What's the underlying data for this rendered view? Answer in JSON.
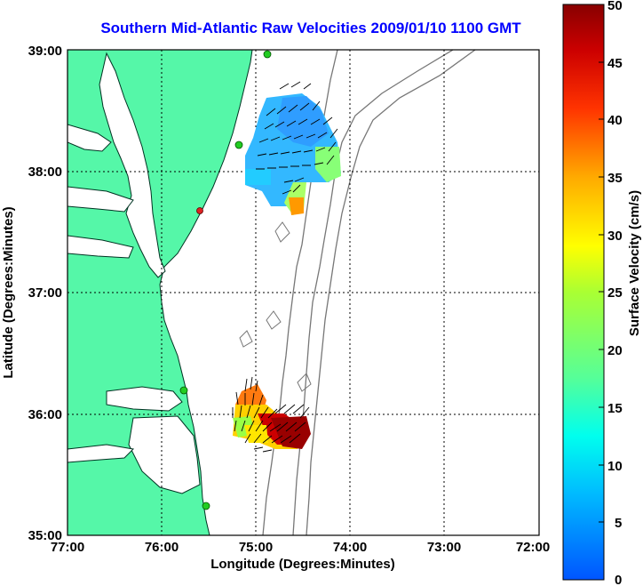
{
  "title": "Southern Mid-Atlantic Raw Velocities 2009/01/10 1100 GMT",
  "x_axis": {
    "label": "Longitude (Degrees:Minutes)",
    "ticks": [
      "77:00",
      "76:00",
      "75:00",
      "74:00",
      "73:00",
      "72:00"
    ],
    "range": [
      -77,
      -72
    ]
  },
  "y_axis": {
    "label": "Latitude (Degrees:Minutes)",
    "ticks": [
      "39:00",
      "38:00",
      "37:00",
      "36:00",
      "35:00"
    ],
    "range": [
      35,
      39
    ]
  },
  "colorbar": {
    "label": "Surface Velocity (cm/s)",
    "ticks": [
      "50",
      "45",
      "40",
      "35",
      "30",
      "25",
      "20",
      "15",
      "10",
      "5",
      "0"
    ],
    "range": [
      0,
      50
    ]
  },
  "colors": {
    "land": "#55f7a8",
    "title": "#0000ff"
  },
  "grid": "dotted",
  "stations": [
    {
      "lon": -75.12,
      "lat": 39.0,
      "color": "#22cc22"
    },
    {
      "lon": -75.15,
      "lat": 38.25,
      "color": "#22cc22"
    },
    {
      "lon": -75.57,
      "lat": 37.6,
      "color": "#dd2222"
    },
    {
      "lon": -75.7,
      "lat": 36.2,
      "color": "#22cc22"
    },
    {
      "lon": -75.5,
      "lat": 35.05,
      "color": "#22cc22"
    }
  ],
  "velocity_regions": [
    {
      "name": "north",
      "points": [
        [
          -75.0,
          38.7,
          8
        ],
        [
          -74.8,
          38.6,
          10
        ],
        [
          -74.7,
          38.5,
          9
        ],
        [
          -74.6,
          38.3,
          12
        ],
        [
          -75.1,
          38.2,
          13
        ],
        [
          -74.9,
          38.0,
          11
        ],
        [
          -74.5,
          38.1,
          20
        ],
        [
          -74.8,
          37.8,
          30
        ]
      ]
    },
    {
      "name": "south",
      "points": [
        [
          -75.0,
          36.4,
          35
        ],
        [
          -75.2,
          36.0,
          25
        ],
        [
          -74.9,
          35.9,
          30
        ],
        [
          -74.6,
          35.8,
          45
        ],
        [
          -74.7,
          35.95,
          40
        ]
      ]
    }
  ]
}
